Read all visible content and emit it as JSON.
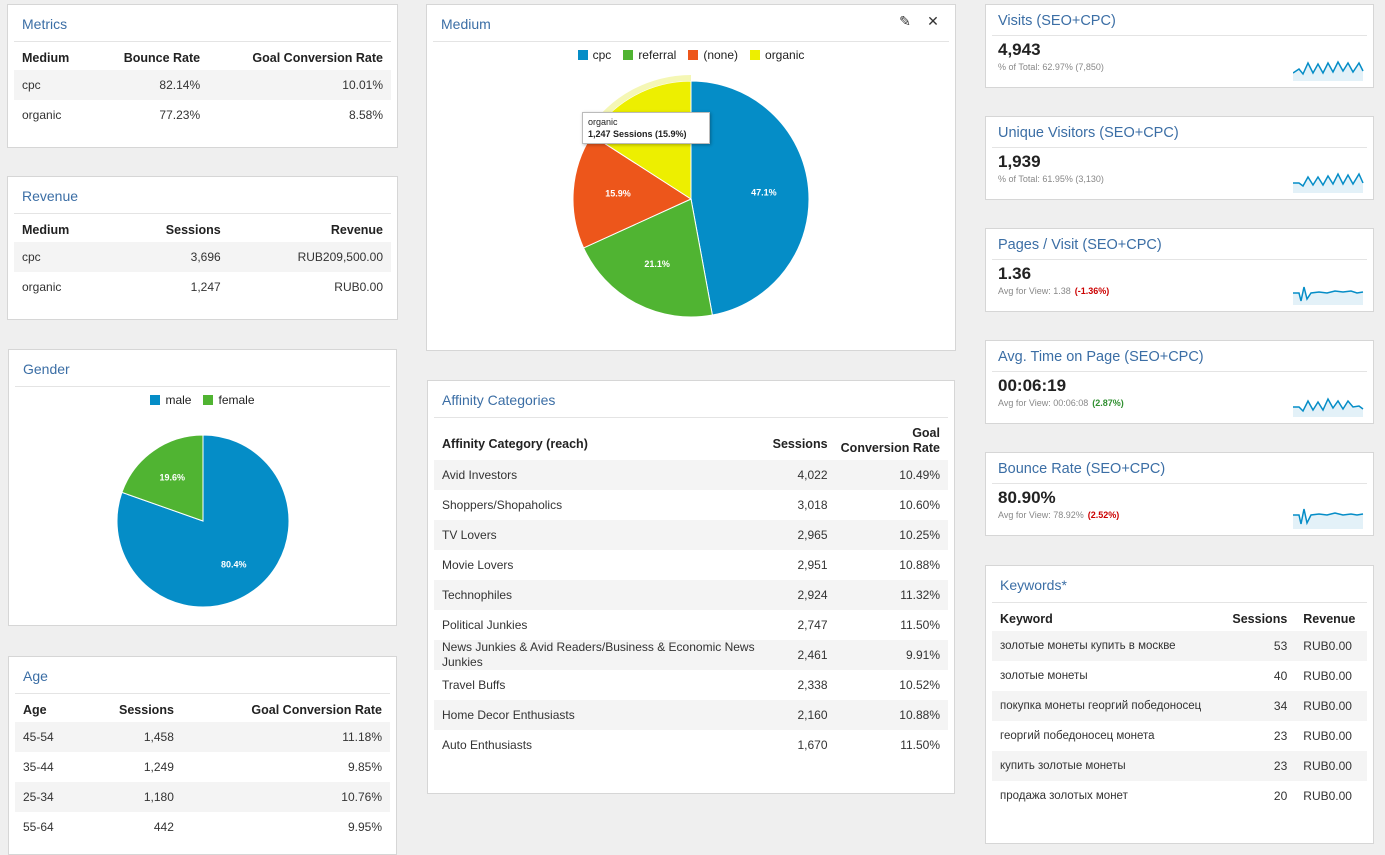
{
  "metrics": {
    "title": "Metrics",
    "headers": [
      "Medium",
      "Bounce Rate",
      "Goal Conversion Rate"
    ],
    "rows": [
      [
        "cpc",
        "82.14%",
        "10.01%"
      ],
      [
        "organic",
        "77.23%",
        "8.58%"
      ]
    ]
  },
  "revenue": {
    "title": "Revenue",
    "headers": [
      "Medium",
      "Sessions",
      "Revenue"
    ],
    "rows": [
      [
        "cpc",
        "3,696",
        "RUB209,500.00"
      ],
      [
        "organic",
        "1,247",
        "RUB0.00"
      ]
    ]
  },
  "gender": {
    "title": "Gender",
    "legend": [
      {
        "label": "male",
        "color": "#058dc7"
      },
      {
        "label": "female",
        "color": "#50b432"
      }
    ],
    "slices": [
      {
        "label": "80.4%",
        "value": 80.4,
        "color": "#058dc7"
      },
      {
        "label": "19.6%",
        "value": 19.6,
        "color": "#50b432"
      }
    ]
  },
  "age": {
    "title": "Age",
    "headers": [
      "Age",
      "Sessions",
      "Goal Conversion Rate"
    ],
    "rows": [
      [
        "45-54",
        "1,458",
        "11.18%"
      ],
      [
        "35-44",
        "1,249",
        "9.85%"
      ],
      [
        "25-34",
        "1,180",
        "10.76%"
      ],
      [
        "55-64",
        "442",
        "9.95%"
      ]
    ]
  },
  "medium": {
    "title": "Medium",
    "legend": [
      {
        "label": "cpc",
        "color": "#058dc7"
      },
      {
        "label": "referral",
        "color": "#50b432"
      },
      {
        "label": "(none)",
        "color": "#ed561b"
      },
      {
        "label": "organic",
        "color": "#edef00"
      }
    ],
    "slices": [
      {
        "label": "47.1%",
        "value": 47.1,
        "color": "#058dc7"
      },
      {
        "label": "21.1%",
        "value": 21.1,
        "color": "#50b432"
      },
      {
        "label": "15.9%",
        "value": 15.9,
        "color": "#ed561b"
      },
      {
        "label": "",
        "value": 15.9,
        "color": "#edef00"
      }
    ],
    "tooltip": {
      "line1": "organic",
      "line2": "1,247 Sessions (15.9%)"
    }
  },
  "affinity": {
    "title": "Affinity Categories",
    "headers": [
      "Affinity Category (reach)",
      "Sessions",
      "Goal",
      "Conversion Rate"
    ],
    "rows": [
      [
        "Avid Investors",
        "4,022",
        "10.49%"
      ],
      [
        "Shoppers/Shopaholics",
        "3,018",
        "10.60%"
      ],
      [
        "TV Lovers",
        "2,965",
        "10.25%"
      ],
      [
        "Movie Lovers",
        "2,951",
        "10.88%"
      ],
      [
        "Technophiles",
        "2,924",
        "11.32%"
      ],
      [
        "Political Junkies",
        "2,747",
        "11.50%"
      ],
      [
        "News Junkies & Avid Readers/Business & Economic News Junkies",
        "2,461",
        "9.91%"
      ],
      [
        "Travel Buffs",
        "2,338",
        "10.52%"
      ],
      [
        "Home Decor Enthusiasts",
        "2,160",
        "10.88%"
      ],
      [
        "Auto Enthusiasts",
        "1,670",
        "11.50%"
      ]
    ]
  },
  "scorecards": [
    {
      "title": "Visits (SEO+CPC)",
      "value": "4,943",
      "sub": "% of Total: 62.97% (7,850)",
      "change": "",
      "change_color": ""
    },
    {
      "title": "Unique Visitors (SEO+CPC)",
      "value": "1,939",
      "sub": "% of Total: 61.95% (3,130)",
      "change": "",
      "change_color": ""
    },
    {
      "title": "Pages / Visit (SEO+CPC)",
      "value": "1.36",
      "sub": "Avg for View: 1.38",
      "change": "(-1.36%)",
      "change_color": "#cc0000"
    },
    {
      "title": "Avg. Time on Page (SEO+CPC)",
      "value": "00:06:19",
      "sub": "Avg for View: 00:06:08",
      "change": "(2.87%)",
      "change_color": "#2f8f2f"
    },
    {
      "title": "Bounce Rate (SEO+CPC)",
      "value": "80.90%",
      "sub": "Avg for View: 78.92%",
      "change": "(2.52%)",
      "change_color": "#cc0000"
    }
  ],
  "keywords": {
    "title": "Keywords*",
    "headers": [
      "Keyword",
      "Sessions",
      "Revenue"
    ],
    "rows": [
      [
        "золотые монеты купить в москве",
        "53",
        "RUB0.00"
      ],
      [
        "золотые монеты",
        "40",
        "RUB0.00"
      ],
      [
        "покупка монеты георгий победоносец",
        "34",
        "RUB0.00"
      ],
      [
        "георгий победоносец монета",
        "23",
        "RUB0.00"
      ],
      [
        "купить золотые монеты",
        "23",
        "RUB0.00"
      ],
      [
        "продажа золотых монет",
        "20",
        "RUB0.00"
      ]
    ]
  }
}
